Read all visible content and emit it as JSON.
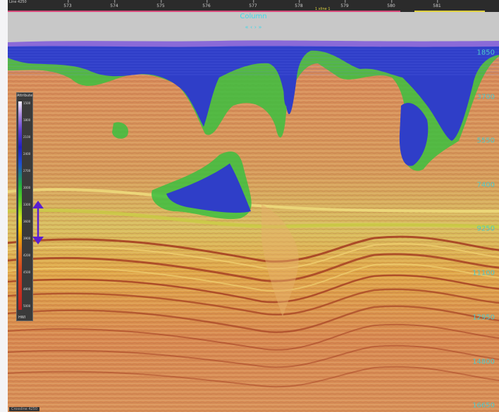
{
  "viewer": {
    "top_left_label": "Line 4250",
    "ruler_ticks": [
      "573",
      "574",
      "575",
      "576",
      "577",
      "578",
      "579",
      "580",
      "581"
    ],
    "mid_label": "1 xline 1",
    "column_title": "Column",
    "column_nav": "« ‹ › »",
    "bottom_label": "Crossline 4250"
  },
  "depth_axis": {
    "labels": [
      "1850",
      "3700",
      "5550",
      "7400",
      "9250",
      "11100",
      "12950",
      "14800",
      "16650"
    ]
  },
  "colorbar": {
    "header": "Attribute",
    "ticks": [
      "1500",
      "1800",
      "2100",
      "2400",
      "2700",
      "3000",
      "3300",
      "3600",
      "3900",
      "4200",
      "4500",
      "4800",
      "5000"
    ],
    "footer": "HWI"
  },
  "colors": {
    "accent_cyan": "#40d8e8",
    "depth_label": "#4ec8c8",
    "arrow": "#5a1fd0",
    "salt_blue": "#2f3ec8",
    "sediment_orange": "#d98a4a"
  }
}
